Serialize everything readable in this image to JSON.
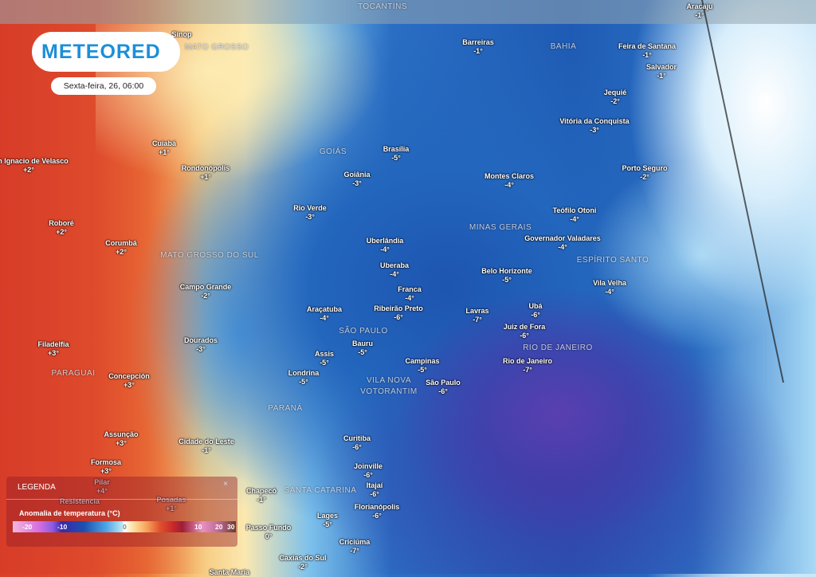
{
  "brand": {
    "logo": "METEORED",
    "datetime": "Sexta-feira, 26, 06:00"
  },
  "map": {
    "variable": "Anomalia de temperatura (°C)",
    "colors": {
      "cold": "#1f5bb4",
      "very_cold": "#5a3fb0",
      "warm": "#d8402a",
      "neutral": "#ffffff",
      "brand": "#1c8fd8"
    },
    "regions": [
      "TOCANTINS",
      "BAHIA",
      "GOIÁS",
      "MATO GROSSO",
      "MATO GROSSO DO SUL",
      "MINAS GERAIS",
      "ESPÍRITO SANTO",
      "SÃO PAULO",
      "RIO DE JANEIRO",
      "PARAGUAI",
      "PARANÁ",
      "SANTA CATARINA",
      "VILA NOVA",
      "VOTORANTIM"
    ],
    "cities": [
      {
        "name": "Aracaju",
        "value": "-1°"
      },
      {
        "name": "Sinop",
        "value": ""
      },
      {
        "name": "Barreiras",
        "value": "-1°"
      },
      {
        "name": "Feira de Santana",
        "value": "-1°"
      },
      {
        "name": "Salvador",
        "value": "-1°"
      },
      {
        "name": "Jequié",
        "value": "-2°"
      },
      {
        "name": "Vitória da Conquista",
        "value": "-3°"
      },
      {
        "name": "Cuiabá",
        "value": "+1°"
      },
      {
        "name": "Brasília",
        "value": "-5°"
      },
      {
        "name": "San Ignacio de Velasco",
        "value": "+2°"
      },
      {
        "name": "Rondonópolis",
        "value": "+1°"
      },
      {
        "name": "Goiânia",
        "value": "-3°"
      },
      {
        "name": "Porto Seguro",
        "value": "-2°"
      },
      {
        "name": "Montes Claros",
        "value": "-4°"
      },
      {
        "name": "Rio Verde",
        "value": "-3°"
      },
      {
        "name": "Teófilo Otoni",
        "value": "-4°"
      },
      {
        "name": "Roboré",
        "value": "+2°"
      },
      {
        "name": "Governador Valadares",
        "value": "-4°"
      },
      {
        "name": "Uberlândia",
        "value": "-4°"
      },
      {
        "name": "Corumbá",
        "value": "+2°"
      },
      {
        "name": "Uberaba",
        "value": "-4°"
      },
      {
        "name": "Belo Horizonte",
        "value": "-5°"
      },
      {
        "name": "Vila Velha",
        "value": "-4°"
      },
      {
        "name": "Campo Grande",
        "value": "-2°"
      },
      {
        "name": "Franca",
        "value": "-4°"
      },
      {
        "name": "Araçatuba",
        "value": "-4°"
      },
      {
        "name": "Ribeirão Preto",
        "value": "-6°"
      },
      {
        "name": "Ubá",
        "value": "-6°"
      },
      {
        "name": "Lavras",
        "value": "-7°"
      },
      {
        "name": "Juiz de Fora",
        "value": "-6°"
      },
      {
        "name": "Dourados",
        "value": "-3°"
      },
      {
        "name": "Filadelfia",
        "value": "+3°"
      },
      {
        "name": "Bauru",
        "value": "-5°"
      },
      {
        "name": "Assis",
        "value": "-5°"
      },
      {
        "name": "Campinas",
        "value": "-5°"
      },
      {
        "name": "Rio de Janeiro",
        "value": "-7°"
      },
      {
        "name": "Londrina",
        "value": "-5°"
      },
      {
        "name": "Concepción",
        "value": "+3°"
      },
      {
        "name": "São Paulo",
        "value": "-6°"
      },
      {
        "name": "Assunção",
        "value": "+3°"
      },
      {
        "name": "Cidade do Leste",
        "value": "-1°"
      },
      {
        "name": "Curitiba",
        "value": "-6°"
      },
      {
        "name": "Formosa",
        "value": "+3°"
      },
      {
        "name": "Joinville",
        "value": "-6°"
      },
      {
        "name": "Pilar",
        "value": "+4°"
      },
      {
        "name": "Itajaí",
        "value": "-6°"
      },
      {
        "name": "Chapecó",
        "value": "-1°"
      },
      {
        "name": "Resistencia",
        "value": ""
      },
      {
        "name": "Posadas",
        "value": "+1°"
      },
      {
        "name": "Florianópolis",
        "value": "-6°"
      },
      {
        "name": "Lages",
        "value": "-5°"
      },
      {
        "name": "Passo Fundo",
        "value": "0°"
      },
      {
        "name": "Criciúma",
        "value": "-7°"
      },
      {
        "name": "Caxias do Sul",
        "value": "-2°"
      },
      {
        "name": "Santa Maria",
        "value": ""
      }
    ]
  },
  "legend": {
    "title": "LEGENDA",
    "subtitle": "Anomalia de temperatura (°C)",
    "close": "×",
    "ticks": [
      "-20",
      "-10",
      "0",
      "10",
      "20",
      "30"
    ]
  }
}
